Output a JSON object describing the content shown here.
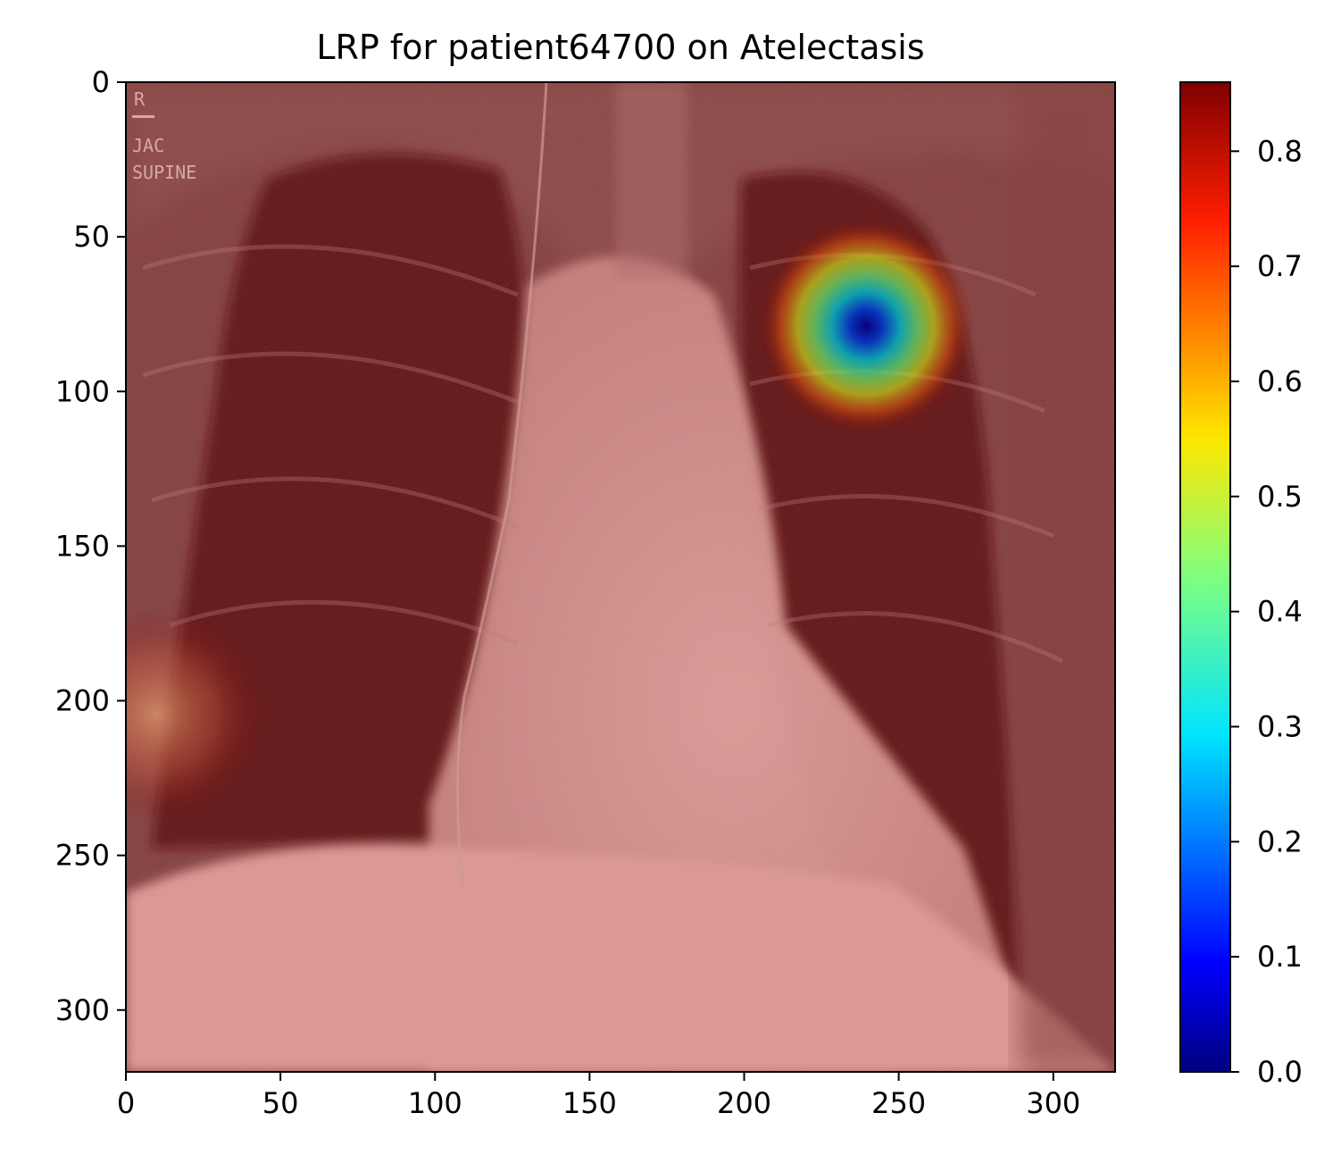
{
  "title": "LRP for patient64700 on Atelectasis",
  "image": {
    "description_hidden": false,
    "annotations": [
      "R",
      "JAC",
      "SUPINE"
    ]
  },
  "axes": {
    "x_range": [
      0,
      320
    ],
    "y_range": [
      0,
      320
    ],
    "x_ticks": [
      0,
      50,
      100,
      150,
      200,
      250,
      300
    ],
    "y_ticks": [
      0,
      50,
      100,
      150,
      200,
      250,
      300
    ]
  },
  "heatmap": {
    "colormap": "jet",
    "hotspots": [
      {
        "x": 239,
        "y": 80,
        "value": 0.0
      },
      {
        "x": 10,
        "y": 205,
        "value": 0.62
      }
    ],
    "background_value": 0.86
  },
  "colorbar": {
    "range": [
      0.0,
      0.86
    ],
    "ticks": [
      "0.0",
      "0.1",
      "0.2",
      "0.3",
      "0.4",
      "0.5",
      "0.6",
      "0.7",
      "0.8"
    ],
    "tick_values": [
      0.0,
      0.1,
      0.2,
      0.3,
      0.4,
      0.5,
      0.6,
      0.7,
      0.8
    ]
  }
}
